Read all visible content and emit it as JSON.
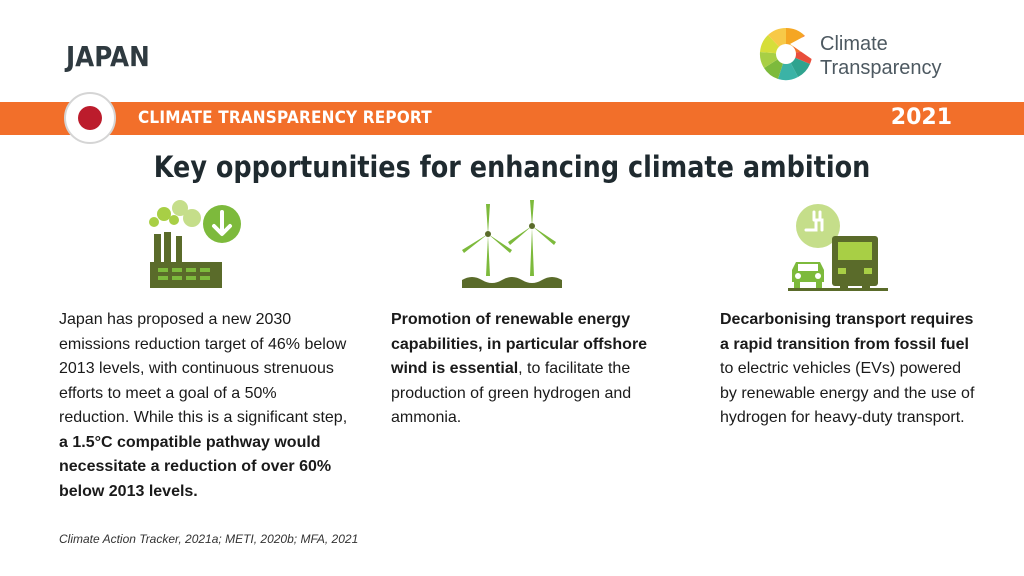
{
  "header": {
    "country": "JAPAN",
    "logo": {
      "line1": "Climate",
      "line2": "Transparency"
    }
  },
  "banner": {
    "report_label": "CLIMATE TRANSPARENCY REPORT",
    "year": "2021"
  },
  "title": "Key opportunities for enhancing climate ambition",
  "columns": [
    {
      "icon": "factory-emissions-down-icon",
      "p1": "Japan has proposed a new 2030 emissions reduction target of 46% below 2013 levels, with continuous strenuous efforts to meet a goal of a 50% reduction.  While this is a significant step, ",
      "b1": "a 1.5°C compatible pathway would necessitate a reduction of over 60% below 2013 levels."
    },
    {
      "icon": "offshore-wind-turbines-icon",
      "b1": "Promotion of renewable energy capabilities, in particular offshore wind is essential",
      "p1": ", to facilitate the production of green hydrogen and ammonia."
    },
    {
      "icon": "electric-vehicles-icon",
      "b1": "Decarbonising transport requires a rapid transition from fossil fuel",
      "p1": " to electric vehicles (EVs) powered by renewable energy and the use of hydrogen for heavy-duty transport."
    }
  ],
  "source": "Climate Action Tracker, 2021a; METI, 2020b; MFA, 2021",
  "colors": {
    "orange": "#f26f2a",
    "green_dark": "#5a6b2a",
    "green_light": "#7dba3c",
    "flag_red": "#bc1c2c"
  }
}
